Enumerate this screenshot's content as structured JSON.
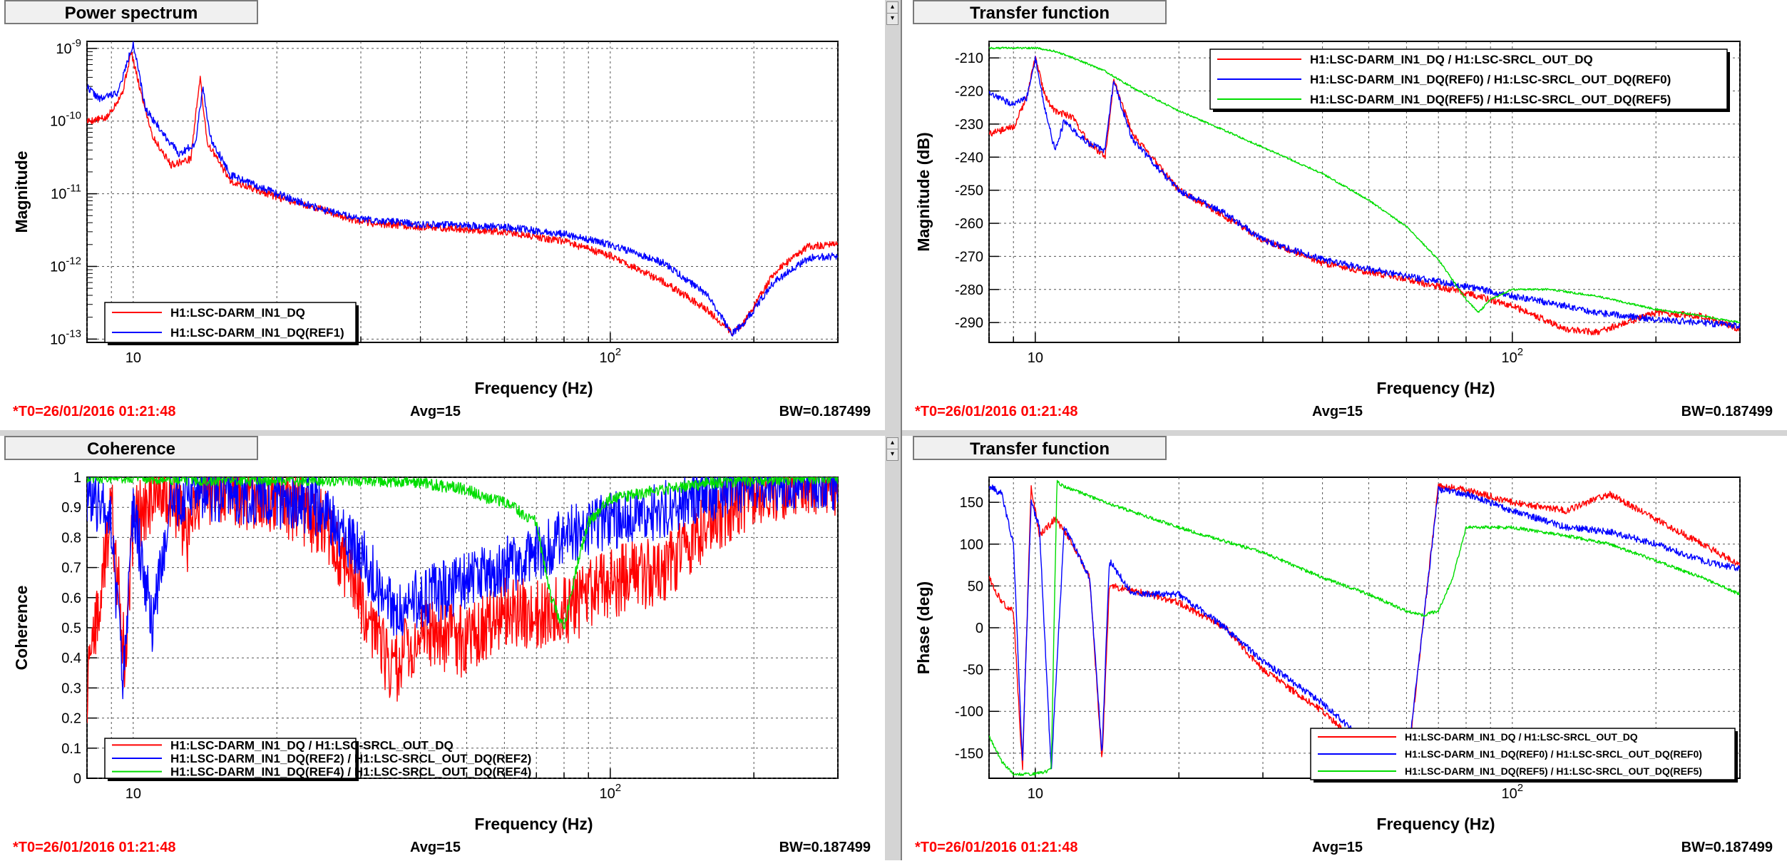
{
  "panels": [
    {
      "tab": "Power spectrum",
      "footer": {
        "t0": "*T0=26/01/2016 01:21:48",
        "avg": "Avg=15",
        "bw": "BW=0.187499"
      },
      "chart_data": {
        "type": "line",
        "xscale": "log",
        "yscale": "log",
        "xlim": [
          8,
          300
        ],
        "ylim": [
          9e-14,
          1.25e-09
        ],
        "xlabel": "Frequency (Hz)",
        "ylabel": "Magnitude",
        "xticks": [
          {
            "v": 10,
            "label": "10"
          },
          {
            "v": 100,
            "label": "10",
            "sup": "2"
          }
        ],
        "yticks": [
          {
            "v": 1e-13,
            "label": "10",
            "sup": "-13"
          },
          {
            "v": 1e-12,
            "label": "10",
            "sup": "-12"
          },
          {
            "v": 1e-11,
            "label": "10",
            "sup": "-11"
          },
          {
            "v": 1e-10,
            "label": "10",
            "sup": "-10"
          },
          {
            "v": 1e-09,
            "label": "10",
            "sup": "-9"
          }
        ],
        "grid": true,
        "legend": "bottom-left",
        "series": [
          {
            "name": "H1:LSC-DARM_IN1_DQ",
            "color": "#ff0000",
            "noise": 0.05,
            "x": [
              8,
              8.8,
              9.5,
              9.9,
              10.3,
              11,
              12,
              13.2,
              13.8,
              14.3,
              16,
              20,
              25,
              30,
              40,
              60,
              80,
              100,
              130,
              160,
              180,
              190,
              220,
              260,
              300
            ],
            "y": [
              1e-10,
              1.1e-10,
              2.5e-10,
              9e-10,
              3e-10,
              6e-11,
              2.5e-11,
              3e-11,
              4e-10,
              5e-11,
              1.5e-11,
              9e-12,
              6e-12,
              4e-12,
              3.5e-12,
              3e-12,
              2.2e-12,
              1.4e-12,
              6e-13,
              2.5e-13,
              1.2e-13,
              1.6e-13,
              8e-13,
              1.9e-12,
              2e-12
            ]
          },
          {
            "name": "H1:LSC-DARM_IN1_DQ(REF1)",
            "color": "#0000ff",
            "noise": 0.05,
            "x": [
              8,
              8.5,
              9.3,
              10,
              10.6,
              11.5,
              12.5,
              13.5,
              14,
              14.5,
              16,
              20,
              25,
              30,
              40,
              60,
              80,
              100,
              130,
              160,
              180,
              190,
              220,
              260,
              300
            ],
            "y": [
              3e-10,
              2e-10,
              2.5e-10,
              1.2e-09,
              1.5e-10,
              7e-11,
              3.5e-11,
              5e-11,
              3e-10,
              6e-11,
              1.8e-11,
              1e-11,
              6e-12,
              4.5e-12,
              3.8e-12,
              3.5e-12,
              2.8e-12,
              2e-12,
              1.1e-12,
              4e-13,
              1.2e-13,
              1.6e-13,
              6e-13,
              1.3e-12,
              1.4e-12
            ]
          }
        ]
      }
    },
    {
      "tab": "Transfer function",
      "footer": {
        "t0": "*T0=26/01/2016 01:21:48",
        "avg": "Avg=15",
        "bw": "BW=0.187499"
      },
      "chart_data": {
        "type": "line",
        "xscale": "log",
        "yscale": "linear",
        "xlim": [
          8,
          300
        ],
        "ylim": [
          -296,
          -205
        ],
        "xlabel": "Frequency (Hz)",
        "ylabel": "Magnitude (dB)",
        "xticks": [
          {
            "v": 10,
            "label": "10"
          },
          {
            "v": 100,
            "label": "10",
            "sup": "2"
          }
        ],
        "yticks": [
          {
            "v": -290,
            "label": "-290"
          },
          {
            "v": -280,
            "label": "-280"
          },
          {
            "v": -270,
            "label": "-270"
          },
          {
            "v": -260,
            "label": "-260"
          },
          {
            "v": -250,
            "label": "-250"
          },
          {
            "v": -240,
            "label": "-240"
          },
          {
            "v": -230,
            "label": "-230"
          },
          {
            "v": -220,
            "label": "-220"
          },
          {
            "v": -210,
            "label": "-210"
          }
        ],
        "grid": true,
        "legend": "top-right",
        "series": [
          {
            "name": "H1:LSC-DARM_IN1_DQ / H1:LSC-SRCL_OUT_DQ",
            "color": "#ff0000",
            "noise": 1,
            "x": [
              8,
              9,
              9.6,
              10,
              10.5,
              11,
              12,
              13,
              14,
              14.6,
              16,
              20,
              25,
              30,
              40,
              60,
              80,
              100,
              130,
              150,
              200,
              250,
              300
            ],
            "y": [
              -233,
              -231,
              -222,
              -210,
              -222,
              -226,
              -228,
              -236,
              -240,
              -217,
              -233,
              -250,
              -258,
              -265,
              -272,
              -277,
              -281,
              -285,
              -292,
              -293,
              -287,
              -288,
              -292
            ]
          },
          {
            "name": "H1:LSC-DARM_IN1_DQ(REF0) / H1:LSC-SRCL_OUT_DQ(REF0)",
            "color": "#0000ff",
            "noise": 1,
            "x": [
              8,
              9,
              9.6,
              10,
              10.5,
              11,
              11.5,
              12,
              13,
              14,
              14.6,
              16,
              20,
              25,
              30,
              40,
              60,
              80,
              100,
              130,
              150,
              200,
              250,
              300
            ],
            "y": [
              -221,
              -224,
              -222,
              -210,
              -226,
              -238,
              -229,
              -232,
              -236,
              -238,
              -217,
              -235,
              -250,
              -257,
              -265,
              -271,
              -276,
              -279,
              -282,
              -285,
              -287,
              -289,
              -290,
              -291
            ]
          },
          {
            "name": "H1:LSC-DARM_IN1_DQ(REF5) / H1:LSC-SRCL_OUT_DQ(REF5)",
            "color": "#00dd00",
            "noise": 0.3,
            "x": [
              8,
              9,
              10,
              11,
              12,
              14,
              16,
              20,
              25,
              30,
              40,
              50,
              60,
              70,
              80,
              85,
              90,
              100,
              120,
              150,
              200,
              250,
              300
            ],
            "y": [
              -207,
              -207,
              -207,
              -208,
              -210,
              -214,
              -219,
              -226,
              -232,
              -237,
              -245,
              -253,
              -261,
              -271,
              -283,
              -287,
              -283,
              -280,
              -280,
              -282,
              -286,
              -288,
              -290
            ]
          }
        ]
      }
    },
    {
      "tab": "Coherence",
      "footer": {
        "t0": "*T0=26/01/2016 01:21:48",
        "avg": "Avg=15",
        "bw": "BW=0.187499"
      },
      "chart_data": {
        "type": "line",
        "xscale": "log",
        "yscale": "linear",
        "xlim": [
          8,
          300
        ],
        "ylim": [
          0,
          1
        ],
        "xlabel": "Frequency (Hz)",
        "ylabel": "Coherence",
        "xticks": [
          {
            "v": 10,
            "label": "10"
          },
          {
            "v": 100,
            "label": "10",
            "sup": "2"
          }
        ],
        "yticks": [
          {
            "v": 0,
            "label": "0"
          },
          {
            "v": 0.1,
            "label": "0.1"
          },
          {
            "v": 0.2,
            "label": "0.2"
          },
          {
            "v": 0.3,
            "label": "0.3"
          },
          {
            "v": 0.4,
            "label": "0.4"
          },
          {
            "v": 0.5,
            "label": "0.5"
          },
          {
            "v": 0.6,
            "label": "0.6"
          },
          {
            "v": 0.7,
            "label": "0.7"
          },
          {
            "v": 0.8,
            "label": "0.8"
          },
          {
            "v": 0.9,
            "label": "0.9"
          },
          {
            "v": 1,
            "label": "1"
          }
        ],
        "grid": true,
        "legend": "bottom-left",
        "series": [
          {
            "name": "H1:LSC-DARM_IN1_DQ / H1:LSC-SRCL_OUT_DQ",
            "color": "#ff0000",
            "noise": 0.12,
            "cap": 1,
            "x": [
              8,
              8.3,
              9,
              9.6,
              10,
              11,
              12,
              13,
              14,
              16,
              20,
              25,
              30,
              35,
              40,
              50,
              60,
              80,
              100,
              130,
              160,
              200,
              250,
              300
            ],
            "y": [
              0.3,
              0.5,
              0.9,
              0.4,
              0.85,
              0.92,
              0.95,
              0.8,
              0.95,
              0.95,
              0.93,
              0.85,
              0.6,
              0.35,
              0.5,
              0.45,
              0.55,
              0.55,
              0.65,
              0.7,
              0.85,
              0.95,
              0.99,
              0.99
            ]
          },
          {
            "name": "H1:LSC-DARM_IN1_DQ(REF2) / H1:LSC-SRCL_OUT_DQ(REF2)",
            "color": "#0000ff",
            "noise": 0.1,
            "cap": 1,
            "x": [
              8,
              8.5,
              9,
              9.5,
              10,
              11,
              12,
              14,
              16,
              20,
              25,
              30,
              35,
              40,
              50,
              60,
              80,
              100,
              130,
              160,
              200,
              250,
              300
            ],
            "y": [
              0.95,
              0.9,
              0.85,
              0.3,
              0.9,
              0.5,
              0.93,
              0.95,
              0.95,
              0.93,
              0.9,
              0.75,
              0.55,
              0.6,
              0.65,
              0.7,
              0.8,
              0.85,
              0.9,
              0.95,
              0.98,
              0.99,
              0.99
            ]
          },
          {
            "name": "H1:LSC-DARM_IN1_DQ(REF4) / H1:LSC-SRCL_OUT_DQ(REF4)",
            "color": "#00dd00",
            "noise": 0.02,
            "cap": 1,
            "x": [
              8,
              10,
              14,
              20,
              30,
              40,
              50,
              55,
              60,
              70,
              75,
              80,
              85,
              90,
              100,
              130,
              160,
              200,
              300
            ],
            "y": [
              1,
              1,
              0.99,
              0.99,
              0.99,
              0.98,
              0.96,
              0.93,
              0.92,
              0.85,
              0.6,
              0.5,
              0.7,
              0.85,
              0.93,
              0.96,
              0.98,
              0.99,
              1
            ]
          }
        ]
      }
    },
    {
      "tab": "Transfer function",
      "footer": {
        "t0": "*T0=26/01/2016 01:21:48",
        "avg": "Avg=15",
        "bw": "BW=0.187499"
      },
      "chart_data": {
        "type": "line",
        "xscale": "log",
        "yscale": "linear",
        "xlim": [
          8,
          300
        ],
        "ylim": [
          -180,
          180
        ],
        "xlabel": "Frequency (Hz)",
        "ylabel": "Phase (deg)",
        "xticks": [
          {
            "v": 10,
            "label": "10"
          },
          {
            "v": 100,
            "label": "10",
            "sup": "2"
          }
        ],
        "yticks": [
          {
            "v": -150,
            "label": "-150"
          },
          {
            "v": -100,
            "label": "-100"
          },
          {
            "v": -50,
            "label": "-50"
          },
          {
            "v": 0,
            "label": "0"
          },
          {
            "v": 50,
            "label": "50"
          },
          {
            "v": 100,
            "label": "100"
          },
          {
            "v": 150,
            "label": "150"
          }
        ],
        "grid": true,
        "legend": "bottom-right",
        "series": [
          {
            "name": "H1:LSC-DARM_IN1_DQ / H1:LSC-SRCL_OUT_DQ",
            "color": "#ff0000",
            "noise": 4,
            "wrap": 1,
            "x": [
              8,
              8.5,
              9,
              9.4,
              9.8,
              10.2,
              11,
              12,
              13,
              13.8,
              14.3,
              16,
              20,
              25,
              30,
              40,
              50,
              60,
              70,
              80,
              100,
              130,
              160,
              200,
              250,
              300
            ],
            "y": [
              60,
              30,
              20,
              -170,
              170,
              110,
              130,
              100,
              60,
              -160,
              50,
              45,
              30,
              0,
              -50,
              -100,
              -150,
              -175,
              170,
              165,
              150,
              140,
              160,
              130,
              100,
              75
            ]
          },
          {
            "name": "H1:LSC-DARM_IN1_DQ(REF0) / H1:LSC-SRCL_OUT_DQ(REF0)",
            "color": "#0000ff",
            "noise": 4,
            "wrap": 1,
            "x": [
              8,
              8.5,
              9,
              9.4,
              9.8,
              10.2,
              10.8,
              11.5,
              12,
              13,
              13.8,
              14.3,
              16,
              20,
              25,
              30,
              40,
              50,
              60,
              70,
              80,
              100,
              130,
              160,
              200,
              250,
              300
            ],
            "y": [
              170,
              160,
              100,
              -160,
              150,
              120,
              -170,
              120,
              100,
              60,
              -150,
              80,
              40,
              40,
              0,
              -40,
              -90,
              -140,
              -170,
              165,
              160,
              140,
              120,
              115,
              100,
              80,
              70
            ]
          },
          {
            "name": "H1:LSC-DARM_IN1_DQ(REF5) / H1:LSC-SRCL_OUT_DQ(REF5)",
            "color": "#00dd00",
            "noise": 2,
            "wrap": 1,
            "x": [
              8,
              8.5,
              9,
              10,
              10.8,
              11.1,
              11.4,
              14,
              20,
              30,
              40,
              50,
              60,
              65,
              70,
              75,
              80,
              100,
              130,
              160,
              200,
              250,
              300
            ],
            "y": [
              -130,
              -160,
              -175,
              -175,
              -170,
              175,
              170,
              150,
              120,
              90,
              60,
              40,
              20,
              15,
              20,
              60,
              120,
              120,
              110,
              100,
              80,
              60,
              40
            ]
          }
        ]
      }
    }
  ]
}
